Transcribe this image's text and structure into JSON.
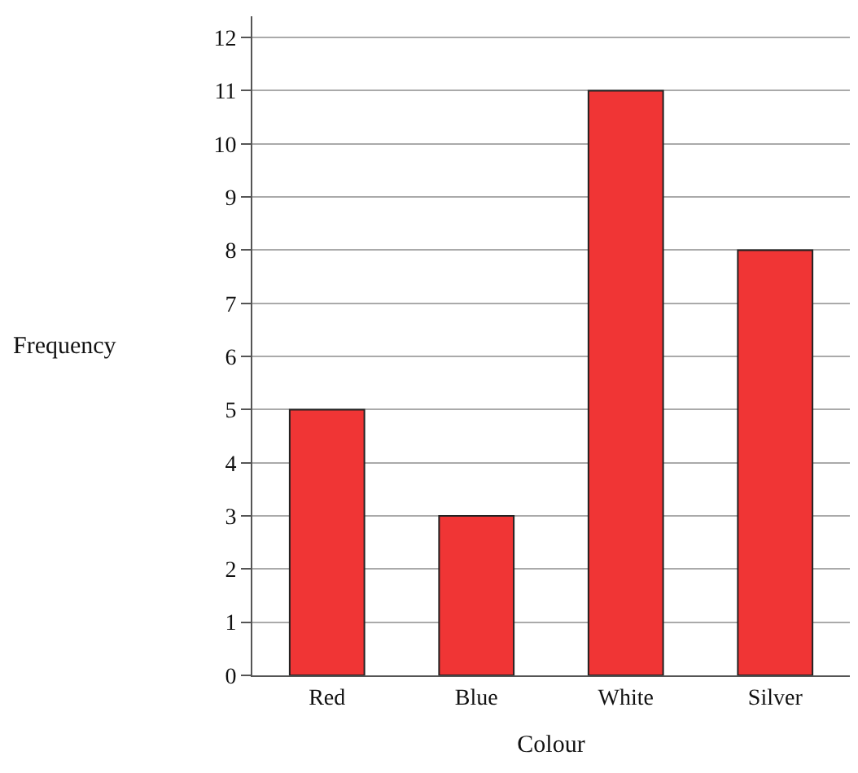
{
  "chart_data": {
    "type": "bar",
    "xlabel": "Colour",
    "ylabel": "Frequency",
    "categories": [
      "Red",
      "Blue",
      "White",
      "Silver"
    ],
    "values": [
      5,
      3,
      11,
      8
    ],
    "color": "#f03535",
    "ylim": [
      0,
      12.4
    ],
    "yticks": [
      0,
      1,
      2,
      3,
      4,
      5,
      6,
      7,
      8,
      9,
      10,
      11,
      12
    ],
    "grid": "y",
    "legend": false
  }
}
